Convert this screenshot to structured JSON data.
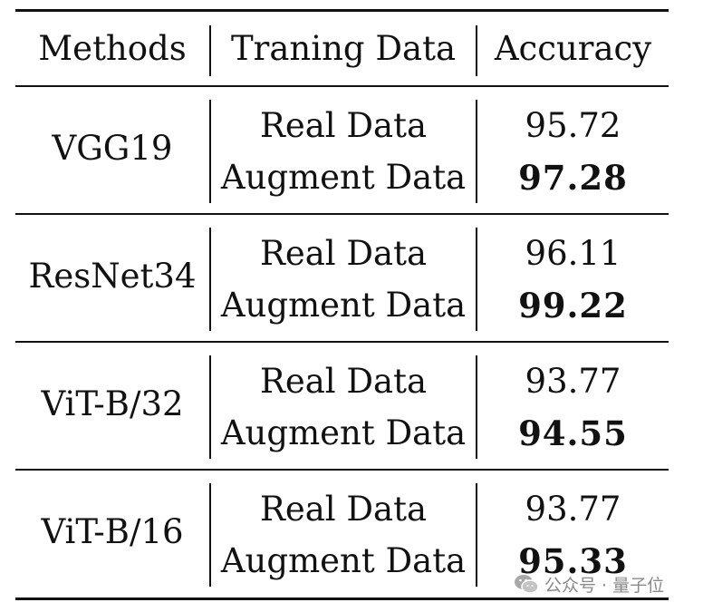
{
  "headers": {
    "method": "Methods",
    "data": "Traning Data",
    "accuracy": "Accuracy"
  },
  "groups": [
    {
      "method": "VGG19",
      "rows": [
        {
          "data": "Real Data",
          "accuracy": "95.72",
          "best": false
        },
        {
          "data": "Augment Data",
          "accuracy": "97.28",
          "best": true
        }
      ]
    },
    {
      "method": "ResNet34",
      "rows": [
        {
          "data": "Real Data",
          "accuracy": "96.11",
          "best": false
        },
        {
          "data": "Augment Data",
          "accuracy": "99.22",
          "best": true
        }
      ]
    },
    {
      "method": "ViT-B/32",
      "rows": [
        {
          "data": "Real Data",
          "accuracy": "93.77",
          "best": false
        },
        {
          "data": "Augment Data",
          "accuracy": "94.55",
          "best": true
        }
      ]
    },
    {
      "method": "ViT-B/16",
      "rows": [
        {
          "data": "Real Data",
          "accuracy": "93.77",
          "best": false
        },
        {
          "data": "Augment Data",
          "accuracy": "95.33",
          "best": true
        }
      ]
    }
  ],
  "watermark": {
    "text": "公众号 · 量子位",
    "icon": "wechat-icon"
  }
}
